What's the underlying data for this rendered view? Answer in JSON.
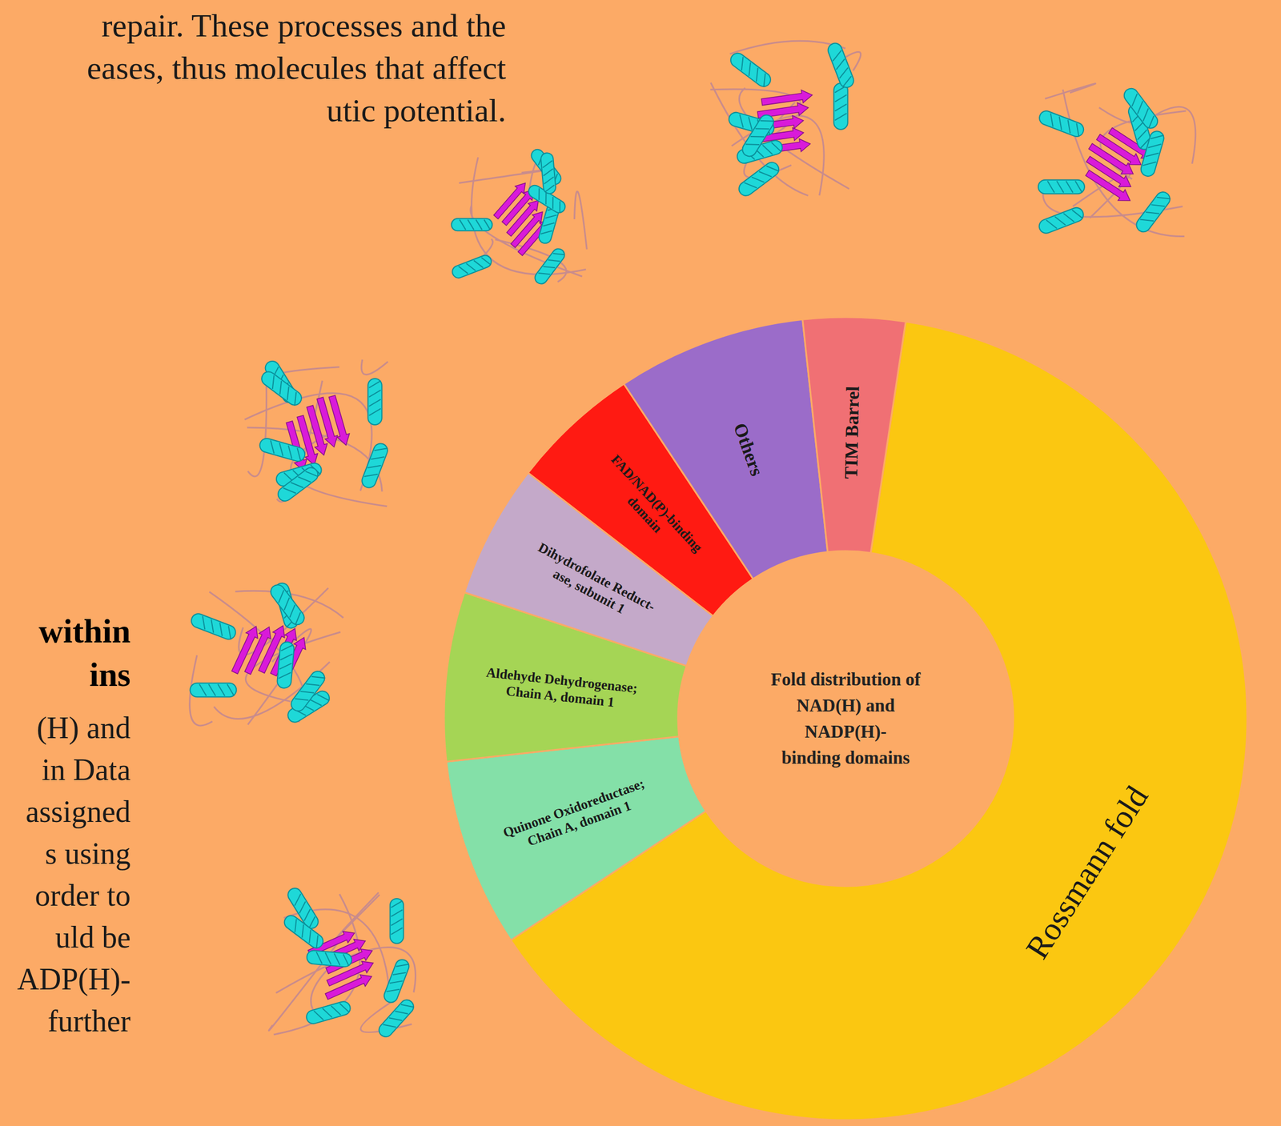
{
  "chart_data": {
    "type": "donut",
    "title": "Fold distribution of\nNAD(H) and\nNADP(H)-\nbinding domains",
    "categories": [
      "Rossmann fold",
      "Quinone Oxidoreductase;\nChain A, domain 1",
      "Aldehyde Dehydrogenase;\nChain A, domain 1",
      "Dihydrofolate Reduct-\nase, subunit 1",
      "FAD/NAD(P)-binding\ndomain",
      "Others",
      "TIM Barrel"
    ],
    "values": [
      63.3,
      7.6,
      6.8,
      5.4,
      5.2,
      7.6,
      4.1
    ],
    "colors": [
      "#FBC711",
      "#84E0A8",
      "#A5D555",
      "#C4A9C9",
      "#FF1A12",
      "#9B6CC9",
      "#F07074"
    ]
  },
  "text_fragments": {
    "top_paragraph": [
      "repair. These processes and the",
      "eases, thus molecules that affect",
      "utic potential."
    ],
    "heading": [
      "within",
      "ins"
    ],
    "side_paragraph": [
      "(H) and",
      "in Data",
      "assigned",
      "s using",
      "order to",
      "uld be",
      "ADP(H)-",
      "further"
    ]
  }
}
